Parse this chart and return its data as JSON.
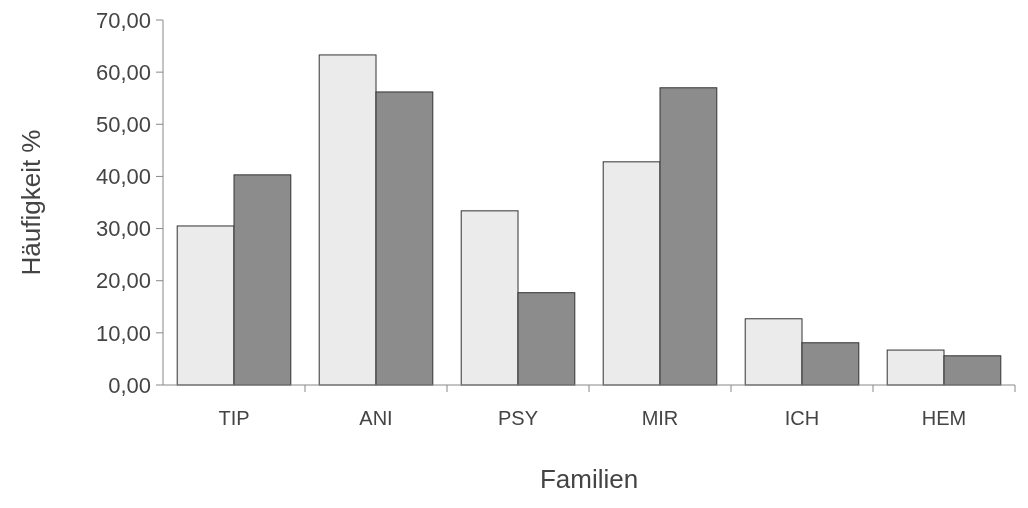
{
  "chart_data": {
    "type": "bar",
    "xlabel": "Familien",
    "ylabel": "Häufigkeit %",
    "categories": [
      "TIP",
      "ANI",
      "PSY",
      "MIR",
      "ICH",
      "HEM"
    ],
    "series": [
      {
        "color": "#ebebeb",
        "values": [
          30.5,
          63.3,
          33.4,
          42.8,
          12.7,
          6.7
        ]
      },
      {
        "color": "#8c8c8c",
        "values": [
          40.3,
          56.2,
          17.7,
          57.0,
          8.1,
          5.6
        ]
      }
    ],
    "ylim": [
      0,
      70
    ],
    "yticks": [
      {
        "value": 0,
        "label": "0,00"
      },
      {
        "value": 10,
        "label": "10,00"
      },
      {
        "value": 20,
        "label": "20,00"
      },
      {
        "value": 30,
        "label": "30,00"
      },
      {
        "value": 40,
        "label": "40,00"
      },
      {
        "value": 50,
        "label": "50,00"
      },
      {
        "value": 60,
        "label": "60,00"
      },
      {
        "value": 70,
        "label": "70,00"
      }
    ],
    "grid": false
  }
}
